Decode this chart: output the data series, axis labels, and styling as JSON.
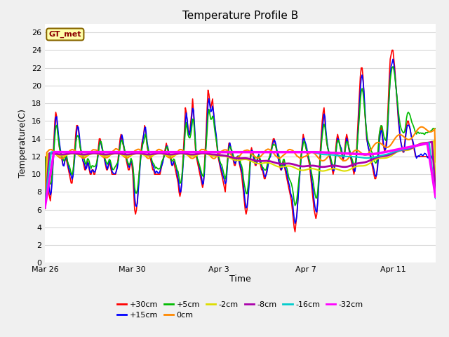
{
  "title": "Temperature Profile B",
  "xlabel": "Time",
  "ylabel": "Temperature(C)",
  "legend_label": "GT_met",
  "ylim": [
    0,
    27
  ],
  "yticks": [
    0,
    2,
    4,
    6,
    8,
    10,
    12,
    14,
    16,
    18,
    20,
    22,
    24,
    26
  ],
  "major_xtick_labels": [
    "Mar 26",
    "Mar 30",
    "Apr 3",
    "Apr 7",
    "Apr 11"
  ],
  "major_xtick_positions": [
    0,
    96,
    192,
    288,
    384
  ],
  "series_labels": [
    "+30cm",
    "+15cm",
    "+5cm",
    "0cm",
    "-2cm",
    "-8cm",
    "-16cm",
    "-32cm"
  ],
  "series_colors": [
    "#ff0000",
    "#0000ff",
    "#00bb00",
    "#ff8800",
    "#dddd00",
    "#aa00aa",
    "#00cccc",
    "#ff00ff"
  ],
  "fig_bg_color": "#f0f0f0",
  "plot_bg_color": "#ffffff",
  "grid_color": "#d8d8d8",
  "title_fontsize": 11,
  "label_fontsize": 9,
  "tick_fontsize": 8
}
